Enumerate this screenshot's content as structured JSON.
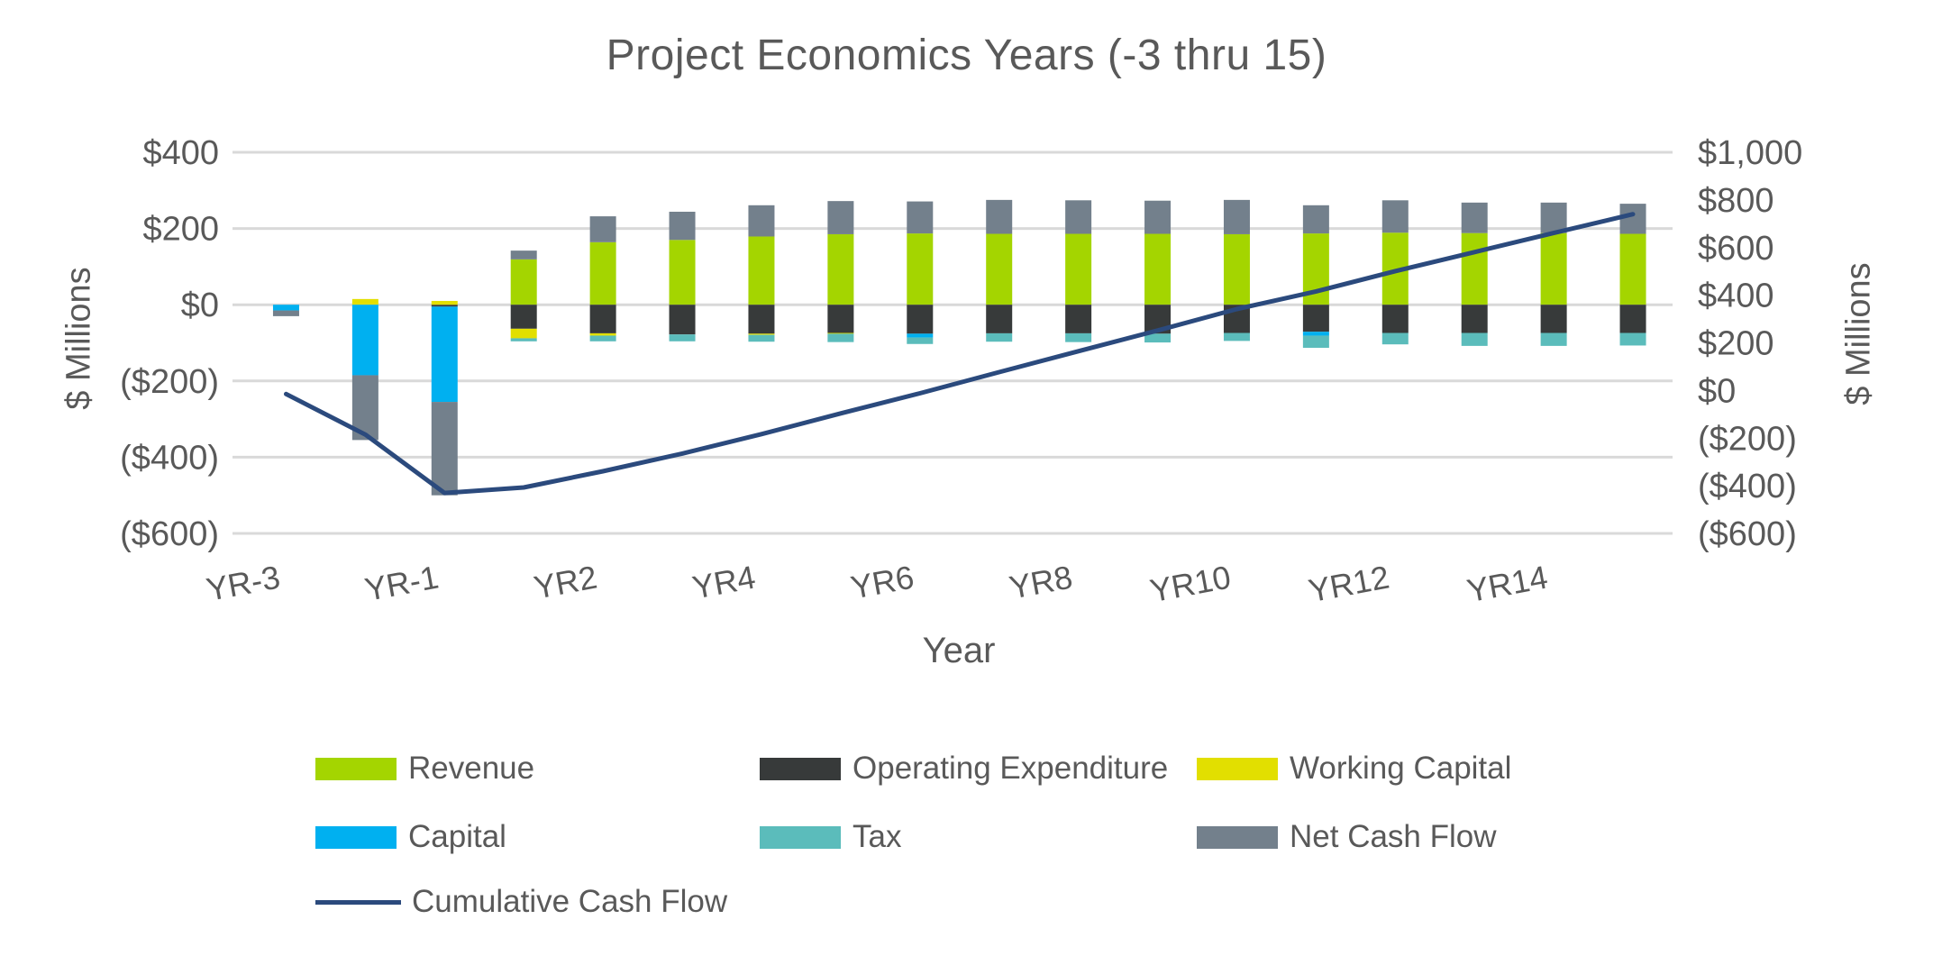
{
  "chart_data": {
    "type": "combo-stacked-bar-line",
    "title": "Project Economics Years (-3 thru 15)",
    "x_axis": {
      "title": "Year",
      "categories": [
        "YR-3",
        "YR-2",
        "YR-1",
        "YR1",
        "YR2",
        "YR3",
        "YR4",
        "YR5",
        "YR6",
        "YR7",
        "YR8",
        "YR9",
        "YR10",
        "YR11",
        "YR12",
        "YR13",
        "YR14",
        "YR15"
      ],
      "shown_tick_labels": [
        "YR-3",
        "YR-1",
        "YR2",
        "YR4",
        "YR6",
        "YR8",
        "YR10",
        "YR12",
        "YR14"
      ],
      "label_every": 2
    },
    "left_axis": {
      "title": "$ Millions",
      "range": [
        -600,
        400
      ],
      "tick_values": [
        400,
        200,
        0,
        -200,
        -400,
        -600
      ],
      "tick_labels": [
        "$400",
        "$200",
        "$0",
        "($200)",
        "($400)",
        "($600)"
      ]
    },
    "right_axis": {
      "title": "$ Millions",
      "range": [
        -600,
        1000
      ],
      "tick_values": [
        1000,
        800,
        600,
        400,
        200,
        0,
        -200,
        -400,
        -600
      ],
      "tick_labels": [
        "$1,000",
        "$800",
        "$600",
        "$400",
        "$200",
        "$0",
        "($200)",
        "($400)",
        "($600)"
      ]
    },
    "grid": true,
    "legend_position": "bottom",
    "bar_series": [
      {
        "name": "Revenue",
        "color": "#A4D500",
        "values": [
          0,
          0,
          0,
          119,
          164,
          170,
          179,
          185,
          187,
          186,
          186,
          186,
          185,
          187,
          189,
          188,
          188,
          186
        ]
      },
      {
        "name": "Operating Expenditure",
        "color": "#373A3A",
        "values": [
          0,
          0,
          -5,
          -63,
          -75,
          -78,
          -76,
          -74,
          -76,
          -75,
          -75,
          -76,
          -74,
          -71,
          -74,
          -74,
          -74,
          -74
        ]
      },
      {
        "name": "Working Capital",
        "color": "#E2DF00",
        "values": [
          0,
          15,
          10,
          -25,
          -6,
          0,
          -3,
          -2,
          0,
          0,
          0,
          0,
          0,
          0,
          0,
          0,
          0,
          0
        ]
      },
      {
        "name": "Capital",
        "color": "#00B0F0",
        "values": [
          -15,
          -185,
          -250,
          0,
          0,
          0,
          0,
          0,
          -10,
          0,
          0,
          0,
          0,
          -10,
          0,
          0,
          0,
          0
        ]
      },
      {
        "name": "Tax",
        "color": "#5BBCBB",
        "values": [
          0,
          0,
          0,
          -8,
          -15,
          -18,
          -18,
          -22,
          -17,
          -22,
          -23,
          -23,
          -21,
          -32,
          -30,
          -34,
          -34,
          -33
        ]
      },
      {
        "name": "Net Cash Flow",
        "color": "#73808C",
        "values": [
          -15,
          -170,
          -245,
          23,
          68,
          74,
          82,
          87,
          84,
          89,
          88,
          87,
          90,
          74,
          85,
          80,
          80,
          79
        ]
      }
    ],
    "line_series": {
      "name": "Cumulative Cash Flow",
      "color": "#2B4A7D",
      "axis": "right",
      "values": [
        -15,
        -185,
        -430,
        -407,
        -339,
        -265,
        -183,
        -96,
        -12,
        77,
        165,
        252,
        342,
        416,
        501,
        581,
        661,
        740
      ]
    },
    "colors": {
      "text": "#595959",
      "grid": "#D9D9D9",
      "background": "#FFFFFF"
    }
  }
}
